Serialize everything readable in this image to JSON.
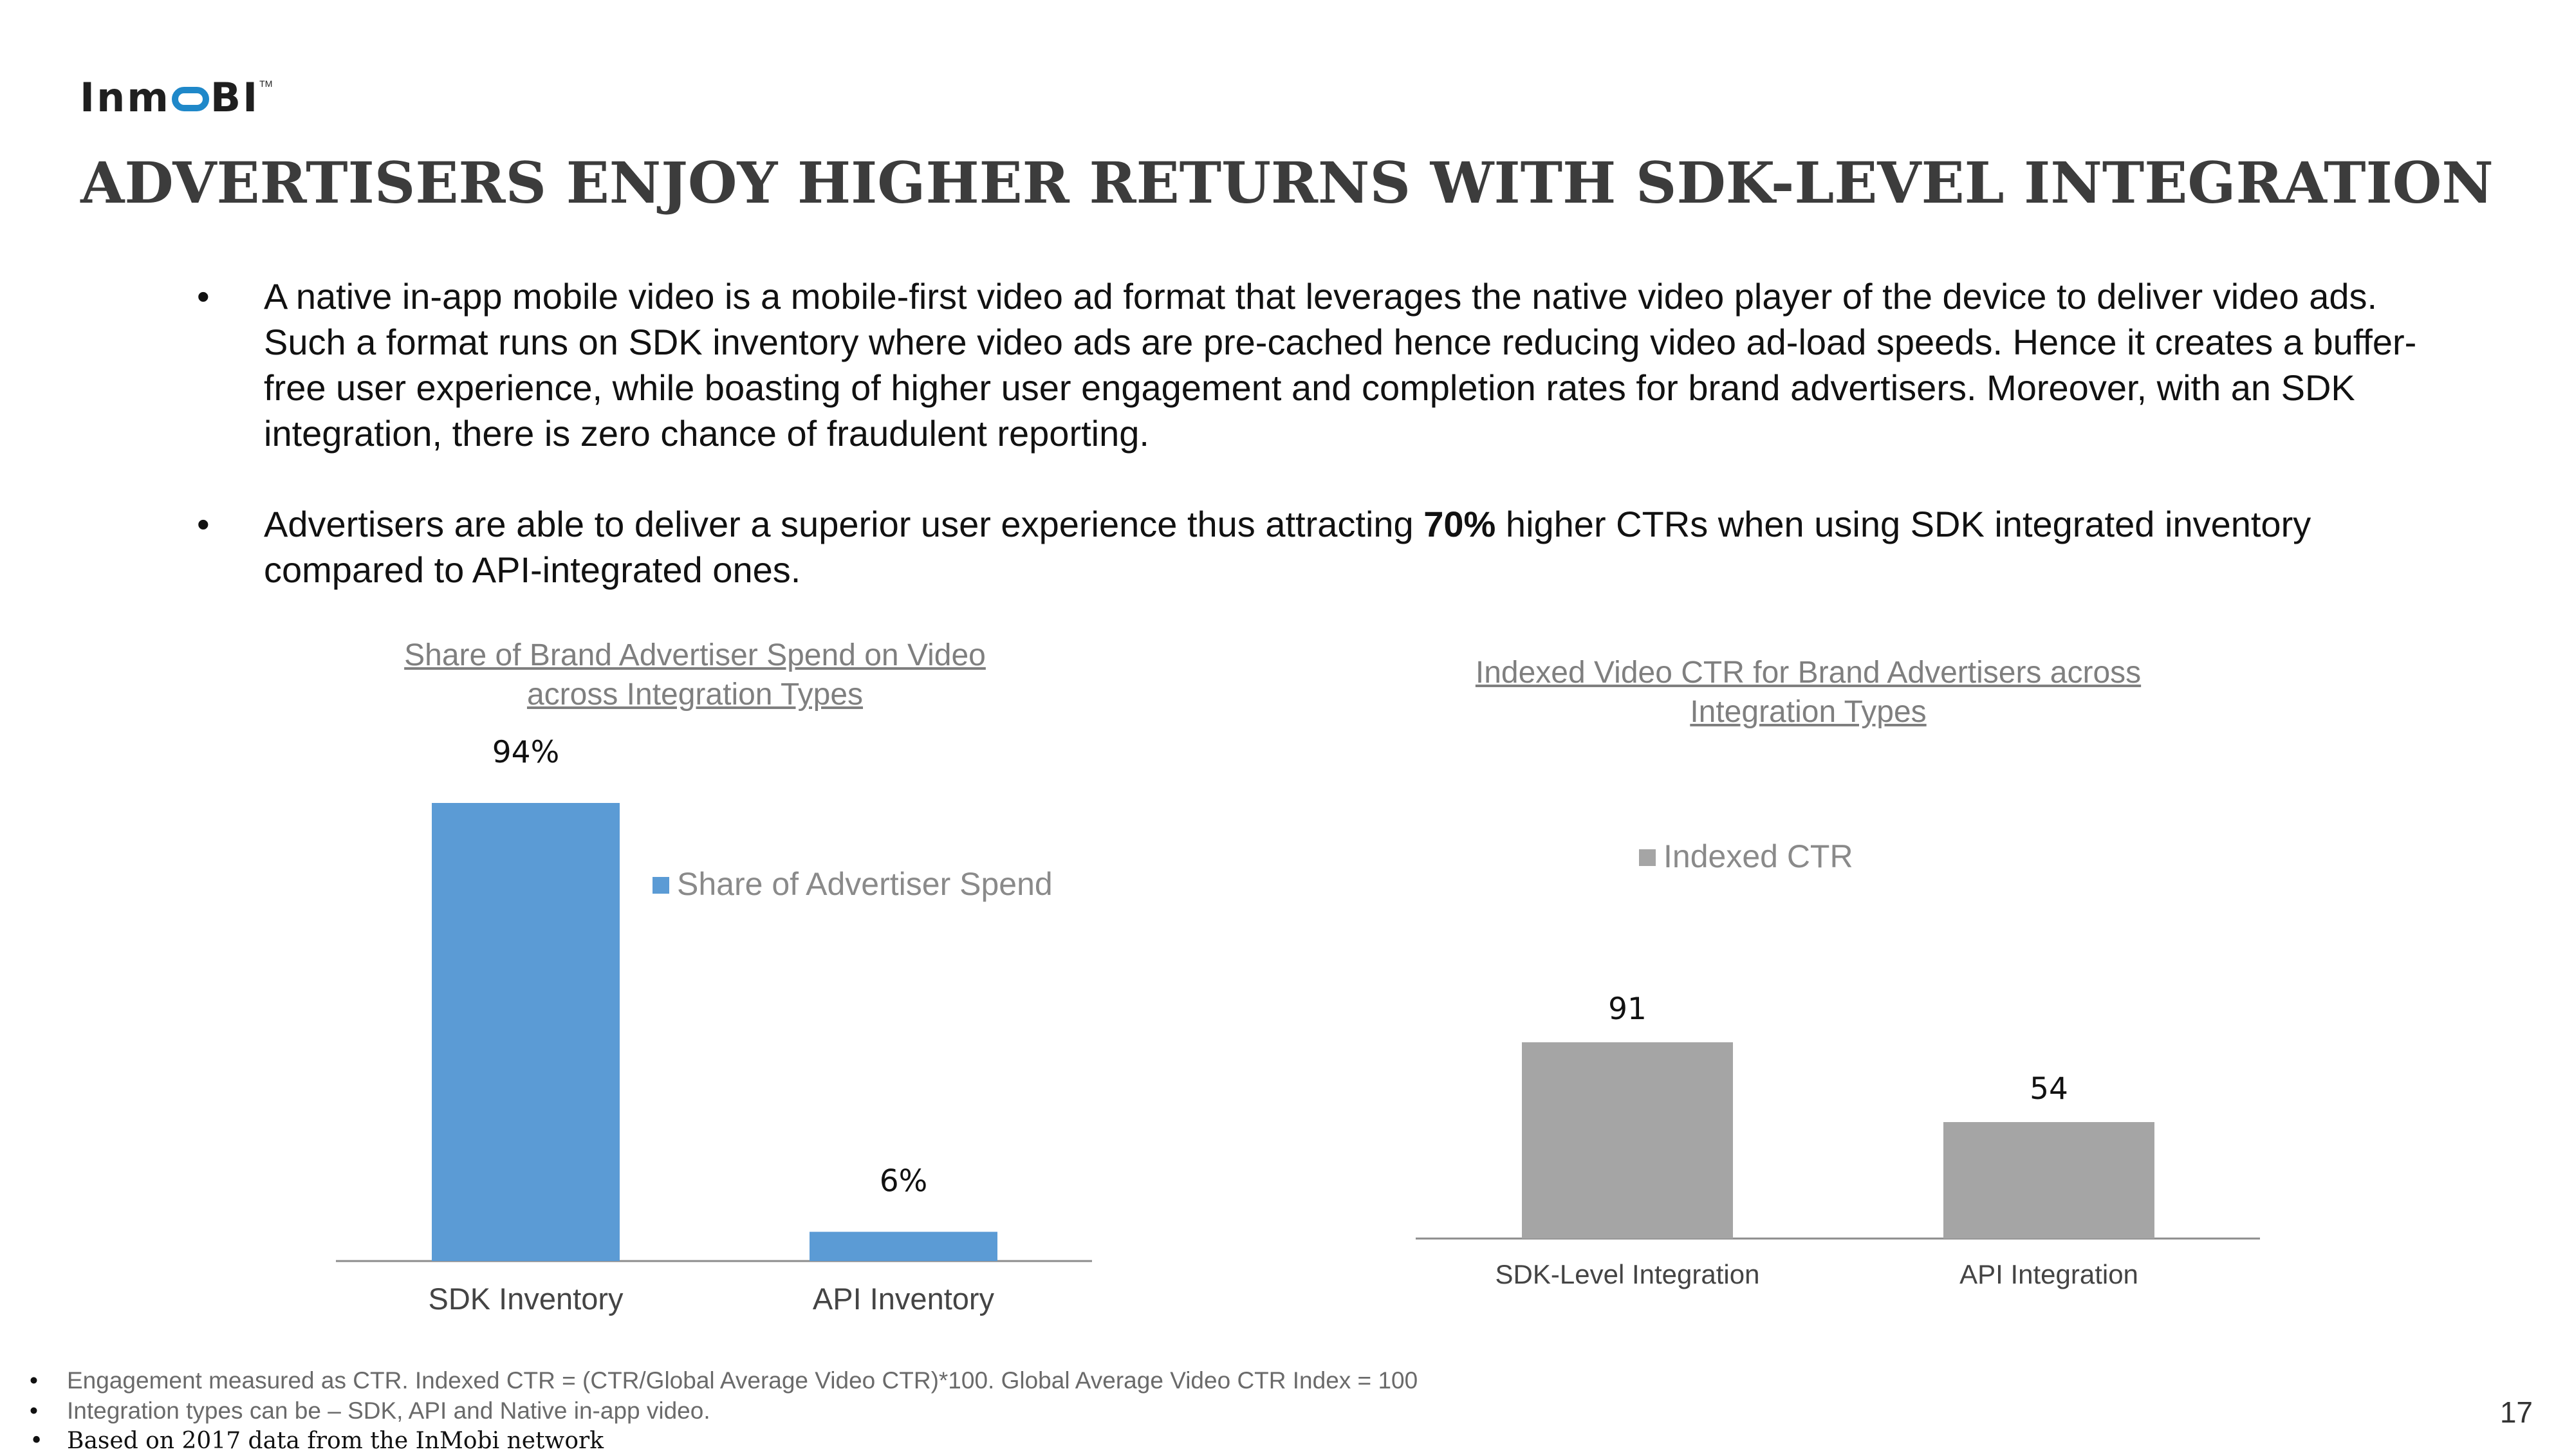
{
  "logo": {
    "part1": "In",
    "part2": "BI",
    "trademark": "TM"
  },
  "title": "ADVERTISERS ENJOY HIGHER RETURNS WITH SDK-LEVEL INTEGRATION",
  "bullets": [
    {
      "marker": "•",
      "text": "A native in-app mobile video is a mobile-first video ad format that leverages the native video player of the device to deliver video ads. Such a format runs on SDK inventory where video ads are pre-cached hence reducing video ad-load speeds. Hence it creates a buffer-free user experience, while boasting of higher user engagement and completion rates for brand advertisers. Moreover, with an SDK integration, there is zero chance of fraudulent reporting."
    },
    {
      "marker": "•",
      "pre": "Advertisers are able to deliver a superior user experience thus attracting ",
      "bold": "70%",
      "post": " higher CTRs when using SDK integrated inventory compared to API-integrated ones."
    }
  ],
  "chart_data": [
    {
      "type": "bar",
      "title": "Share of Brand Advertiser Spend on Video across Integration Types",
      "categories": [
        "SDK Inventory",
        "API Inventory"
      ],
      "series": [
        {
          "name": "Share of Advertiser Spend",
          "values": [
            94,
            6
          ],
          "labels": [
            "94%",
            "6%"
          ],
          "color": "#5b9bd5"
        }
      ],
      "ylim": [
        0,
        94
      ],
      "legend": "right"
    },
    {
      "type": "bar",
      "title": "Indexed Video CTR for Brand Advertisers across Integration Types",
      "categories": [
        "SDK-Level Integration",
        "API Integration"
      ],
      "series": [
        {
          "name": "Indexed CTR",
          "values": [
            91,
            54
          ],
          "labels": [
            "91",
            "54"
          ],
          "color": "#a5a5a5"
        }
      ],
      "ylim": [
        0,
        91
      ],
      "legend": "top"
    }
  ],
  "notes": [
    {
      "marker": "•",
      "text": "Engagement measured as CTR. Indexed CTR = (CTR/Global Average Video CTR)*100. Global Average Video CTR Index = 100"
    },
    {
      "marker": "•",
      "text": "Integration types can be – SDK, API and Native in-app video."
    },
    {
      "marker": "•",
      "text": "Based on 2017 data from the InMobi network"
    }
  ],
  "page_number": "17"
}
